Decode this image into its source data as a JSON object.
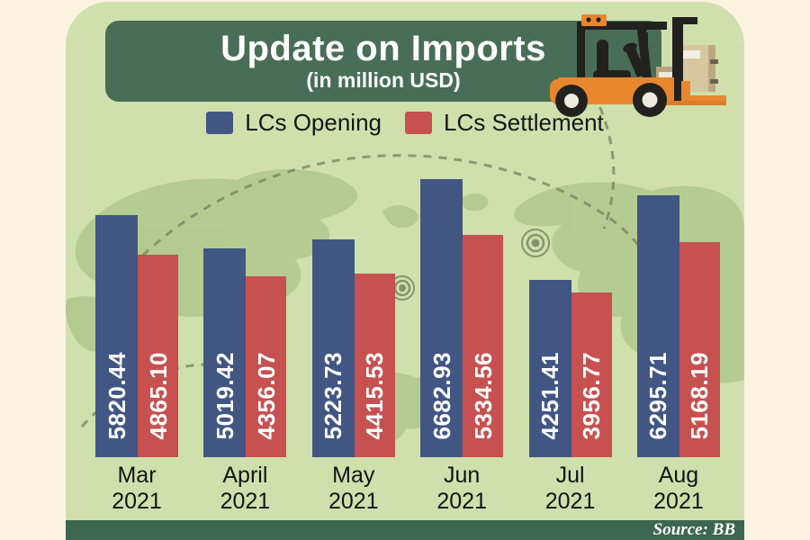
{
  "header": {
    "title": "Update on Imports",
    "subtitle": "(in million USD)"
  },
  "legend": {
    "items": [
      {
        "label": "LCs Opening",
        "color": "#425684"
      },
      {
        "label": "LCs Settlement",
        "color": "#C75150"
      }
    ]
  },
  "footer": {
    "source": "Source: BB"
  },
  "icons": {
    "forklift": "forklift-with-boxes-illustration"
  },
  "colors": {
    "background": "#FCF2E2",
    "panel": "#CFE0AD",
    "title_box": "#496E57",
    "source_bar": "#3C6650",
    "opening_bar": "#425684",
    "settlement_bar": "#C75150",
    "map_land": "#AFC88C",
    "map_dash": "#75815F",
    "bar_value_text": "#FFFFFF",
    "legend_text": "#161616"
  },
  "chart_data": {
    "type": "bar",
    "title": "Update on Imports",
    "subtitle": "(in million USD)",
    "unit": "million USD",
    "legend_position": "top",
    "grid": false,
    "value_labels_on_bars": true,
    "value_label_orientation": "vertical",
    "ylim": [
      0,
      6900
    ],
    "categories": [
      "Mar 2021",
      "April 2021",
      "May 2021",
      "Jun 2021",
      "Jul 2021",
      "Aug 2021"
    ],
    "category_lines": [
      {
        "month": "Mar",
        "year": "2021"
      },
      {
        "month": "April",
        "year": "2021"
      },
      {
        "month": "May",
        "year": "2021"
      },
      {
        "month": "Jun",
        "year": "2021"
      },
      {
        "month": "Jul",
        "year": "2021"
      },
      {
        "month": "Aug",
        "year": "2021"
      }
    ],
    "series": [
      {
        "name": "LCs Opening",
        "color": "#425684",
        "values": [
          5820.44,
          5019.42,
          5223.73,
          6682.93,
          4251.41,
          6295.71
        ],
        "labels": [
          "5820.44",
          "5019.42",
          "5223.73",
          "6682.93",
          "4251.41",
          "6295.71"
        ]
      },
      {
        "name": "LCs Settlement",
        "color": "#C75150",
        "values": [
          4865.1,
          4356.07,
          4415.53,
          5334.56,
          3956.77,
          5168.19
        ],
        "labels": [
          "4865.10",
          "4356.07",
          "4415.53",
          "5334.56",
          "3956.77",
          "5168.19"
        ]
      }
    ],
    "source": "Source: BB"
  }
}
